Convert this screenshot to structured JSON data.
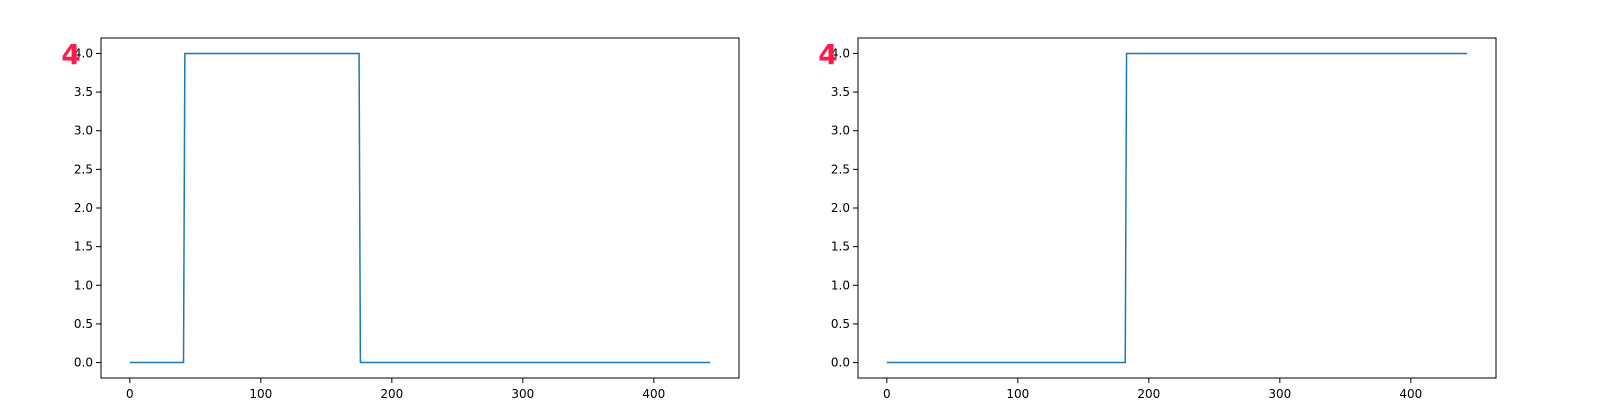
{
  "chart_data": [
    {
      "type": "line",
      "title": "",
      "xlabel": "",
      "ylabel": "",
      "xlim": [
        -22,
        465
      ],
      "ylim": [
        -0.2,
        4.2
      ],
      "xticks": [
        0,
        100,
        200,
        300,
        400
      ],
      "yticks": [
        0.0,
        0.5,
        1.0,
        1.5,
        2.0,
        2.5,
        3.0,
        3.5,
        4.0
      ],
      "xtick_labels": [
        "0",
        "100",
        "200",
        "300",
        "400"
      ],
      "ytick_labels": [
        "0.0",
        "0.5",
        "1.0",
        "1.5",
        "2.0",
        "2.5",
        "3.0",
        "3.5",
        "4.0"
      ],
      "grid": false,
      "series": [
        {
          "color": "#1f77b4",
          "x": [
            0,
            41,
            42,
            175,
            176,
            443
          ],
          "y": [
            0,
            0,
            4,
            4,
            0,
            0
          ]
        }
      ],
      "annotation": {
        "text": "4",
        "color": "#ff1a4b"
      }
    },
    {
      "type": "line",
      "title": "",
      "xlabel": "",
      "ylabel": "",
      "xlim": [
        -22,
        465
      ],
      "ylim": [
        -0.2,
        4.2
      ],
      "xticks": [
        0,
        100,
        200,
        300,
        400
      ],
      "yticks": [
        0.0,
        0.5,
        1.0,
        1.5,
        2.0,
        2.5,
        3.0,
        3.5,
        4.0
      ],
      "xtick_labels": [
        "0",
        "100",
        "200",
        "300",
        "400"
      ],
      "ytick_labels": [
        "0.0",
        "0.5",
        "1.0",
        "1.5",
        "2.0",
        "2.5",
        "3.0",
        "3.5",
        "4.0"
      ],
      "grid": false,
      "series": [
        {
          "color": "#1f77b4",
          "x": [
            0,
            182,
            183,
            443
          ],
          "y": [
            0,
            0,
            4,
            4
          ]
        }
      ],
      "annotation": {
        "text": "4",
        "color": "#ff1a4b"
      }
    }
  ]
}
